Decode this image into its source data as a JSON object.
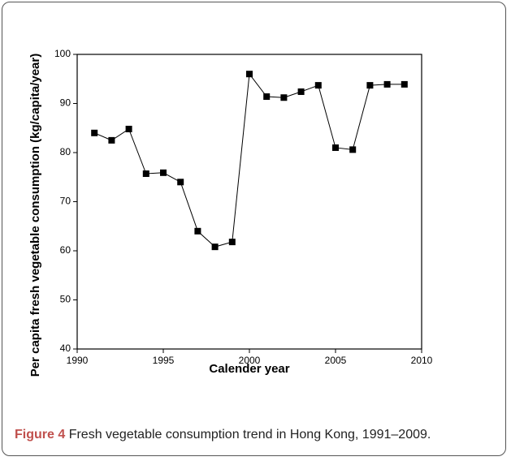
{
  "chart_data": {
    "type": "line",
    "x_label": "Calender year",
    "y_label": "Per capita fresh vegetable consumption (kg/capita/year)",
    "x": [
      1991,
      1992,
      1993,
      1994,
      1995,
      1996,
      1997,
      1998,
      1999,
      2000,
      2001,
      2002,
      2003,
      2004,
      2005,
      2006,
      2007,
      2008,
      2009
    ],
    "values": [
      84.0,
      82.5,
      84.8,
      75.7,
      75.9,
      74.0,
      64.0,
      60.8,
      61.8,
      96.0,
      91.4,
      91.2,
      92.4,
      93.7,
      81.0,
      80.6,
      93.7,
      93.9,
      93.9
    ],
    "color": "#000000",
    "xlim": [
      1990,
      2010
    ],
    "xticks": [
      1990,
      1995,
      2000,
      2005,
      2010
    ],
    "ylim": [
      40,
      100
    ],
    "yticks": [
      40,
      50,
      60,
      70,
      80,
      90,
      100
    ]
  },
  "figure": {
    "label": "Figure 4",
    "caption": "Fresh vegetable consumption trend in Hong Kong, 1991–2009."
  }
}
